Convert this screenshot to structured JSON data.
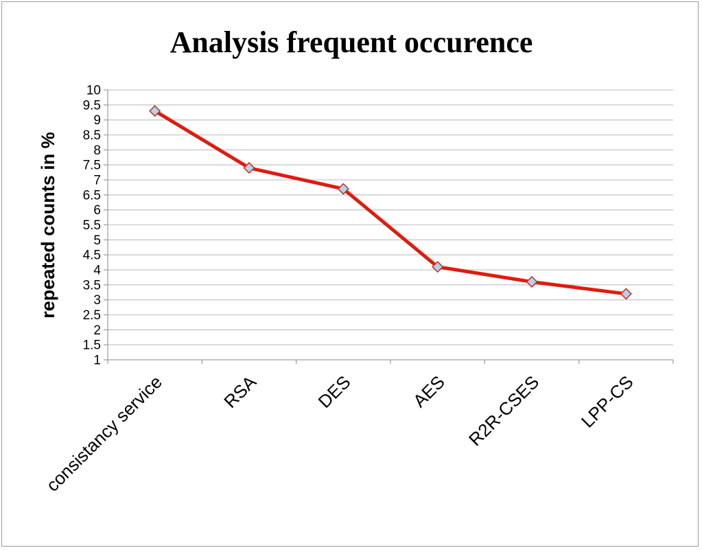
{
  "chart_data": {
    "type": "line",
    "title": "Analysis frequent occurence",
    "xlabel": "",
    "ylabel": "repeated counts in %",
    "categories": [
      "consistancy service",
      "RSA",
      "DES",
      "AES",
      "R2R-CSES",
      "LPP-CS"
    ],
    "series": [
      {
        "values": [
          9.3,
          7.4,
          6.7,
          4.1,
          3.6,
          3.2
        ]
      }
    ],
    "ylim": [
      1,
      10
    ],
    "y_ticks": [
      "1",
      "1.5",
      "2",
      "2.5",
      "3",
      "3.5",
      "4",
      "4.5",
      "5",
      "5.5",
      "6",
      "6.5",
      "7",
      "7.5",
      "8",
      "8.5",
      "9",
      "9.5",
      "10"
    ],
    "grid": "horizontal",
    "legend": "none",
    "colors": {
      "line": "#e01b0f",
      "marker_fill": "#b7d1e8",
      "marker_stroke": "#c0392b",
      "gridline": "#c8c8c8",
      "frame": "#9a9a9a"
    }
  }
}
